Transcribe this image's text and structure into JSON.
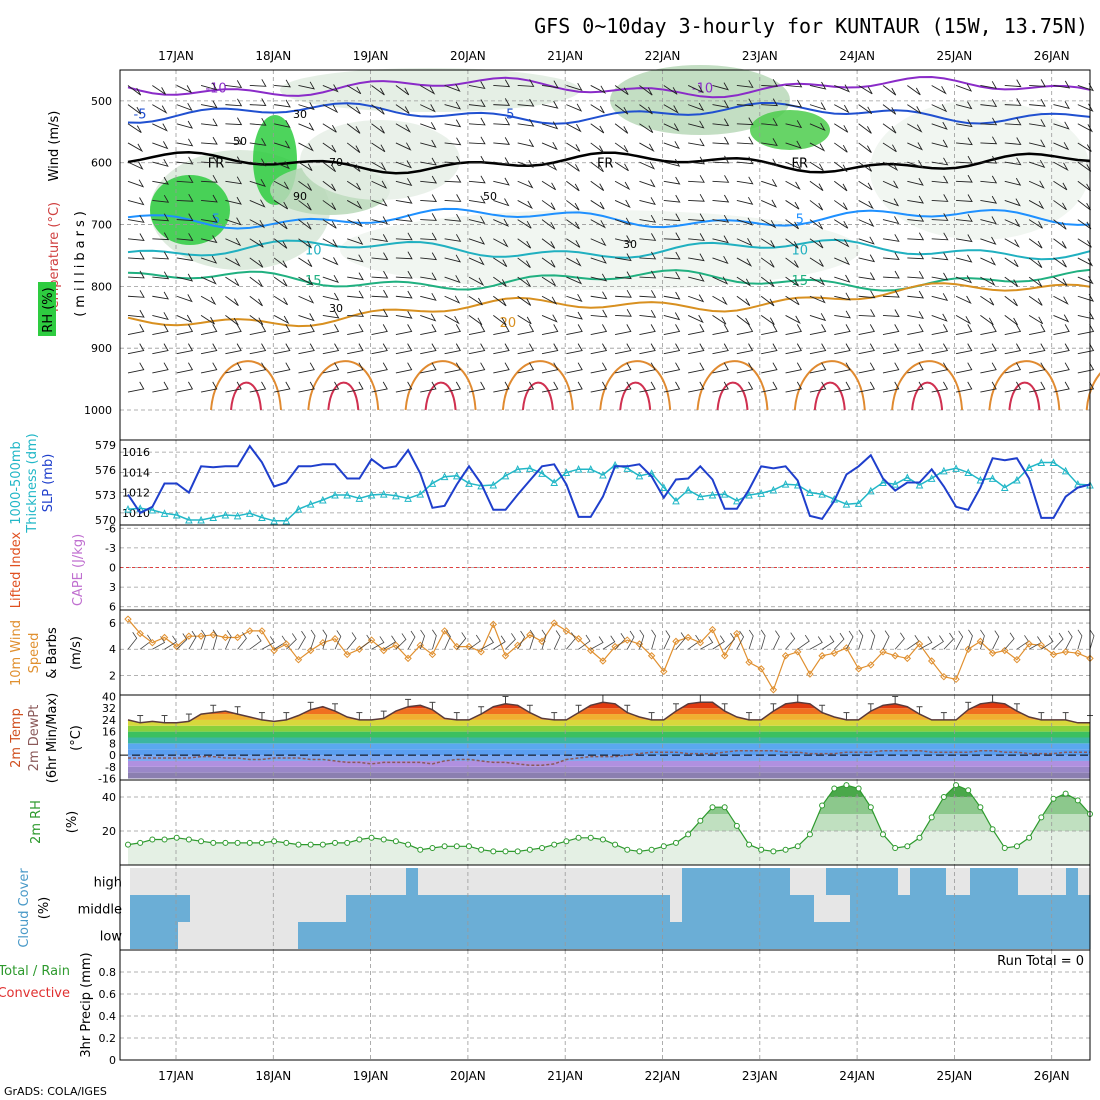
{
  "title": "GFS 0~10day 3-hourly for KUNTAUR (15W, 13.75N)",
  "credit": "GrADS: COLA/IGES",
  "dates": [
    "17JAN",
    "18JAN",
    "19JAN",
    "20JAN",
    "21JAN",
    "22JAN",
    "23JAN",
    "24JAN",
    "25JAN",
    "26JAN"
  ],
  "colors": {
    "rh_green": "#2ecc40",
    "slp": "#1f3fcc",
    "thickness": "#22b7c7",
    "wind": "#e09030",
    "rh2m": "#2e9a2e",
    "cloud": "#6baed6",
    "temp_warm": "#e84a1a",
    "dewpt": "#8b5a5a"
  },
  "chart_data": [
    {
      "id": "upper_air",
      "type": "heatmap",
      "ylabel_parts": [
        "Wind",
        "(m/s)",
        "Temperature",
        "(°C)",
        "RH",
        "(%)",
        "(millibars)"
      ],
      "yticks": [
        500,
        600,
        700,
        800,
        900,
        1000
      ],
      "ylim": [
        1000,
        450
      ],
      "temperature_contours": [
        {
          "label": "-10",
          "level": -10,
          "color": "#8a2bc8",
          "label_at": [
            "17JAN",
            "22JAN"
          ]
        },
        {
          "label": "-5",
          "level": -5,
          "color": "#2050d0",
          "label_at": [
            "16JAN",
            "20JAN"
          ]
        },
        {
          "label": "FR",
          "level": 0,
          "color": "#000000",
          "label_at": [
            "17JAN",
            "21JAN",
            "23JAN"
          ]
        },
        {
          "label": "5",
          "level": 5,
          "color": "#1e90ff",
          "label_at": [
            "17JAN",
            "23JAN"
          ]
        },
        {
          "label": "10",
          "level": 10,
          "color": "#20b0c0",
          "label_at": [
            "18JAN",
            "23JAN"
          ]
        },
        {
          "label": "15",
          "level": 15,
          "color": "#20b080",
          "label_at": [
            "18JAN",
            "23JAN"
          ]
        },
        {
          "label": "20",
          "level": 20,
          "color": "#d89020",
          "label_at": [
            "20JAN"
          ]
        }
      ],
      "rh_labels": [
        "30",
        "50",
        "70",
        "90",
        "30",
        "50",
        "30"
      ],
      "grid": true
    },
    {
      "id": "slp_thickness",
      "type": "line",
      "ylabel_parts": [
        "1000-500mb",
        "Thickness",
        "(dm)",
        "SLP",
        "(mb)"
      ],
      "left_ticks": [
        "570",
        "573",
        "576",
        "579"
      ],
      "right_ticks": [
        "1010",
        "1012",
        "1014",
        "1016"
      ],
      "series": [
        {
          "name": "SLP",
          "axis": "right",
          "values": [
            1011.8,
            1010.0,
            1010.6,
            1012.9,
            1012.9,
            1012.0,
            1014.6,
            1014.5,
            1014.6,
            1014.6,
            1016.6,
            1015.0,
            1012.6,
            1013.0,
            1014.6,
            1014.6,
            1014.8,
            1014.8,
            1013.4,
            1013.4,
            1015.3,
            1014.4,
            1014.6,
            1016.2,
            1013.9,
            1010.5,
            1010.7,
            1012.8,
            1014.6,
            1012.9,
            1010.3,
            1010.3,
            1011.8,
            1013.2,
            1014.6,
            1014.8,
            1012.8,
            1009.6,
            1009.6,
            1011.6,
            1014.6,
            1014.6,
            1014.8,
            1013.6,
            1011.5,
            1013.3,
            1013.4,
            1014.6,
            1013.3,
            1010.4,
            1010.4,
            1012.3,
            1014.6,
            1014.4,
            1014.6,
            1013.2,
            1009.7,
            1009.4,
            1011.2,
            1013.8,
            1014.6,
            1015.7,
            1013.4,
            1012.2,
            1013.0,
            1013.0,
            1014.3,
            1012.6,
            1010.6,
            1010.3,
            1012.5,
            1015.4,
            1015.2,
            1015.4,
            1013.4,
            1009.5,
            1009.5,
            1011.6,
            1012.5,
            1012.8
          ]
        },
        {
          "name": "Thickness",
          "axis": "left",
          "values": [
            571.3,
            571.4,
            571.2,
            570.8,
            570.6,
            570.0,
            570.0,
            570.3,
            570.6,
            570.5,
            570.8,
            570.3,
            569.9,
            569.9,
            571.3,
            571.9,
            572.4,
            573.0,
            573.0,
            572.6,
            573.0,
            573.1,
            572.9,
            572.6,
            573.1,
            574.4,
            575.2,
            575.3,
            574.4,
            574.1,
            574.2,
            575.3,
            576.1,
            576.2,
            575.6,
            574.5,
            575.7,
            576.1,
            576.1,
            575.4,
            576.6,
            576.2,
            575.3,
            575.6,
            573.9,
            572.3,
            573.6,
            572.8,
            573.0,
            573.1,
            572.3,
            573.0,
            573.2,
            573.6,
            574.3,
            574.2,
            573.3,
            573.1,
            572.5,
            571.9,
            572.0,
            573.5,
            574.5,
            574.3,
            575.1,
            574.2,
            575.0,
            575.9,
            576.2,
            575.7,
            574.8,
            575.0,
            573.9,
            574.8,
            576.3,
            576.9,
            576.9,
            575.9,
            574.3,
            574.2
          ]
        }
      ]
    },
    {
      "id": "cape_li",
      "type": "line",
      "ylabel_parts": [
        "Lifted Index",
        "CAPE",
        "(J/kg)"
      ],
      "yticks": [
        "-6",
        "-3",
        "0",
        "3",
        "6"
      ],
      "zero_line": true,
      "series": []
    },
    {
      "id": "wind10m",
      "type": "line",
      "ylabel_parts": [
        "10m Wind",
        "Speed",
        "& Barbs",
        "(m/s)"
      ],
      "yticks": [
        2,
        4,
        6
      ],
      "ylim": [
        0.5,
        7
      ],
      "series": [
        {
          "name": "Speed",
          "values": [
            6.3,
            5.2,
            4.5,
            4.9,
            4.2,
            5.0,
            5.0,
            5.1,
            4.9,
            4.9,
            5.4,
            5.4,
            3.9,
            4.4,
            3.2,
            3.9,
            4.5,
            4.8,
            3.6,
            4.0,
            4.7,
            3.9,
            4.3,
            3.3,
            4.3,
            3.6,
            5.4,
            4.2,
            4.2,
            3.8,
            5.9,
            3.5,
            4.3,
            5.1,
            4.6,
            6.0,
            5.4,
            4.8,
            3.9,
            3.1,
            4.2,
            4.7,
            4.4,
            3.5,
            2.3,
            4.6,
            4.9,
            4.5,
            5.5,
            3.5,
            5.2,
            3.0,
            2.5,
            0.9,
            3.5,
            3.8,
            2.1,
            3.5,
            3.7,
            4.1,
            2.5,
            2.8,
            3.8,
            3.5,
            3.3,
            4.4,
            3.1,
            1.9,
            1.7,
            4.0,
            4.6,
            3.7,
            3.9,
            3.2,
            4.4,
            4.3,
            3.6,
            3.8,
            3.7,
            3.3
          ]
        }
      ]
    },
    {
      "id": "temp2m",
      "type": "area",
      "ylabel_parts": [
        "2m Temp",
        "2m DewPt",
        "(6hr Min/Max)",
        "(°C)"
      ],
      "yticks": [
        "-16",
        "-8",
        "0",
        "8",
        "16",
        "24",
        "32",
        "40"
      ],
      "ylim": [
        -17,
        41
      ],
      "series": [
        {
          "name": "2m Temp",
          "values": [
            24,
            22,
            23,
            22,
            22,
            23,
            28,
            29,
            30,
            28,
            26,
            24,
            23,
            24,
            27,
            31,
            33,
            30,
            26,
            24,
            24,
            25,
            30,
            33,
            34,
            31,
            25,
            24,
            24,
            28,
            33,
            35,
            34,
            29,
            25,
            24,
            24,
            29,
            34,
            36,
            35,
            29,
            26,
            24,
            24,
            30,
            35,
            36,
            36,
            30,
            26,
            24,
            24,
            30,
            35,
            36,
            35,
            29,
            26,
            24,
            24,
            30,
            34,
            35,
            33,
            28,
            24,
            24,
            24,
            31,
            35,
            36,
            35,
            30,
            26,
            24,
            24,
            24,
            22,
            22
          ]
        },
        {
          "name": "2m DewPt",
          "values": [
            -2,
            -2,
            -2,
            -2,
            -2,
            -2,
            -1,
            -1,
            -2,
            -2,
            -3,
            -3,
            -2,
            -2,
            -2,
            -3,
            -3,
            -4,
            -5,
            -5,
            -6,
            -5,
            -5,
            -5,
            -5,
            -6,
            -4,
            -3,
            -3,
            -4,
            -5,
            -5,
            -6,
            -7,
            -7,
            -6,
            -3,
            -2,
            -1,
            -1,
            -1,
            0,
            1,
            2,
            2,
            2,
            1,
            1,
            1,
            2,
            3,
            3,
            3,
            3,
            2,
            2,
            1,
            1,
            1,
            2,
            2,
            2,
            3,
            3,
            3,
            3,
            2,
            2,
            2,
            2,
            3,
            3,
            2,
            2,
            1,
            1,
            1,
            2,
            2,
            2
          ]
        }
      ]
    },
    {
      "id": "rh2m",
      "type": "area",
      "ylabel_parts": [
        "2m RH",
        "(%)"
      ],
      "yticks": [
        20,
        40
      ],
      "ylim": [
        0,
        50
      ],
      "series": [
        {
          "name": "2m RH",
          "values": [
            12,
            13,
            15,
            15,
            16,
            15,
            14,
            13,
            13,
            13,
            13,
            13,
            14,
            13,
            12,
            12,
            12,
            13,
            13,
            15,
            16,
            15,
            14,
            12,
            9,
            10,
            11,
            11,
            11,
            9,
            8,
            8,
            8,
            9,
            10,
            12,
            14,
            16,
            16,
            15,
            12,
            9,
            8,
            9,
            11,
            13,
            18,
            26,
            34,
            34,
            23,
            12,
            9,
            8,
            9,
            11,
            18,
            35,
            45,
            47,
            45,
            34,
            18,
            10,
            11,
            16,
            28,
            40,
            47,
            44,
            34,
            21,
            10,
            11,
            16,
            28,
            39,
            42,
            38,
            30
          ]
        }
      ]
    },
    {
      "id": "cloud",
      "type": "heatmap",
      "ylabel_parts": [
        "Cloud Cover",
        "(%)"
      ],
      "ytick_labels": [
        "high",
        "middle",
        "low"
      ],
      "series": [
        {
          "name": "high",
          "values": [
            0,
            0,
            0,
            0,
            0,
            0,
            0,
            0,
            0,
            0,
            0,
            0,
            0,
            0,
            0,
            0,
            0,
            0,
            0,
            0,
            0,
            0,
            0,
            1,
            0,
            0,
            0,
            0,
            0,
            0,
            0,
            0,
            0,
            0,
            0,
            0,
            0,
            0,
            0,
            0,
            0,
            0,
            0,
            0,
            0,
            0,
            1,
            1,
            1,
            1,
            1,
            1,
            1,
            1,
            1,
            0,
            0,
            0,
            1,
            1,
            1,
            1,
            1,
            1,
            0,
            1,
            1,
            1,
            0,
            0,
            1,
            1,
            1,
            1,
            0,
            0,
            0,
            0,
            1,
            0
          ]
        },
        {
          "name": "middle",
          "values": [
            1,
            1,
            1,
            1,
            1,
            0,
            0,
            0,
            0,
            0,
            0,
            0,
            0,
            0,
            0,
            0,
            0,
            0,
            1,
            1,
            1,
            1,
            1,
            1,
            1,
            1,
            1,
            1,
            1,
            1,
            1,
            1,
            1,
            1,
            1,
            1,
            1,
            1,
            1,
            1,
            1,
            1,
            1,
            1,
            1,
            0,
            1,
            1,
            1,
            1,
            1,
            1,
            1,
            1,
            1,
            1,
            1,
            0,
            0,
            0,
            1,
            1,
            1,
            1,
            1,
            1,
            1,
            1,
            1,
            1,
            1,
            1,
            1,
            1,
            1,
            1,
            1,
            1,
            1,
            1
          ]
        },
        {
          "name": "low",
          "values": [
            1,
            1,
            1,
            1,
            0,
            0,
            0,
            0,
            0,
            0,
            0,
            0,
            0,
            0,
            1,
            1,
            1,
            1,
            1,
            1,
            1,
            1,
            1,
            1,
            1,
            1,
            1,
            1,
            1,
            1,
            1,
            1,
            1,
            1,
            1,
            1,
            1,
            1,
            1,
            1,
            1,
            1,
            1,
            1,
            1,
            1,
            1,
            1,
            1,
            1,
            1,
            1,
            1,
            1,
            1,
            1,
            1,
            1,
            1,
            1,
            1,
            1,
            1,
            1,
            1,
            1,
            1,
            1,
            1,
            1,
            1,
            1,
            1,
            1,
            1,
            1,
            1,
            1,
            1,
            1
          ]
        }
      ]
    },
    {
      "id": "precip",
      "type": "bar",
      "ylabel_parts": [
        "Total / Rain",
        "Convective",
        "3hr Precip (mm)"
      ],
      "yticks": [
        "0",
        "0.2",
        "0.4",
        "0.6",
        "0.8"
      ],
      "ylim": [
        0,
        1
      ],
      "annotation": "Run Total = 0",
      "series": []
    }
  ]
}
